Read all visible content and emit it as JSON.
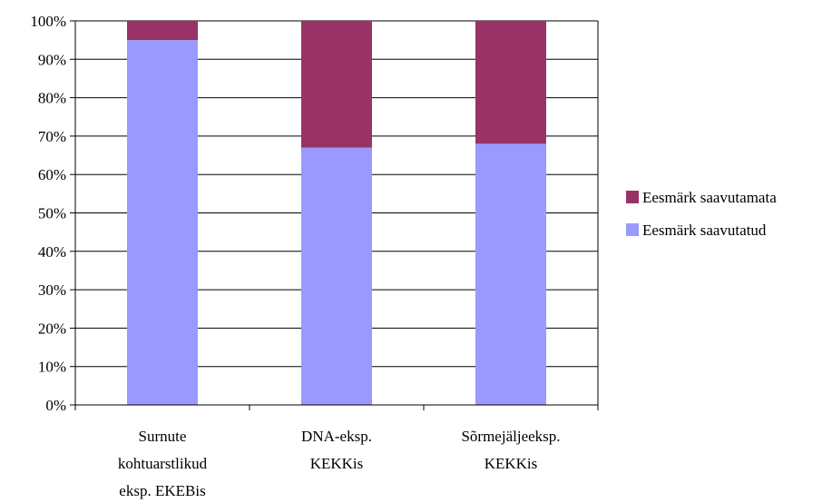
{
  "chart_data": {
    "type": "bar",
    "stacked": true,
    "percent": true,
    "categories": [
      [
        "Surnute",
        "kohtuarstlikud",
        "eksp. EKEBis"
      ],
      [
        "DNA-eksp.",
        "KEKKis"
      ],
      [
        "Sõrmejäljeeksp.",
        "KEKKis"
      ]
    ],
    "series": [
      {
        "name": "Eesmärk saavutatud",
        "color": "#9999ff",
        "values": [
          95,
          67,
          68
        ]
      },
      {
        "name": "Eesmärk saavutamata",
        "color": "#993366",
        "values": [
          5,
          33,
          32
        ]
      }
    ],
    "ylim": [
      0,
      100
    ],
    "yticks": [
      "0%",
      "10%",
      "20%",
      "30%",
      "40%",
      "50%",
      "60%",
      "70%",
      "80%",
      "90%",
      "100%"
    ],
    "grid": true,
    "legend": "right",
    "legend_order": [
      "Eesmärk saavutamata",
      "Eesmärk saavutatud"
    ]
  }
}
